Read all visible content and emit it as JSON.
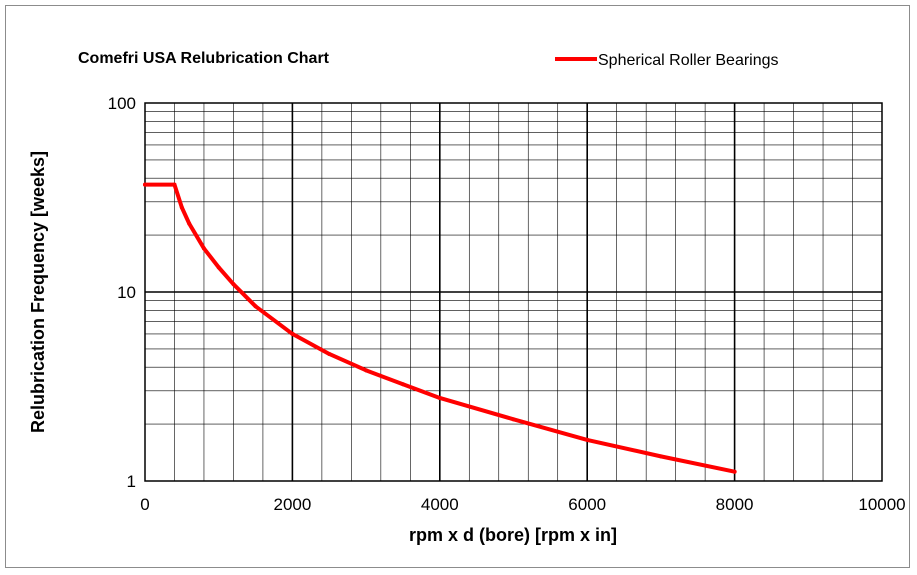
{
  "chart_data": {
    "type": "line",
    "title": "Comefri USA Relubrication Chart",
    "xlabel": "rpm x d (bore) [rpm x in]",
    "ylabel": "Relubrication Frequency [weeks]",
    "x_scale": "linear",
    "y_scale": "log",
    "xlim": [
      0,
      10000
    ],
    "ylim": [
      1,
      100
    ],
    "x_ticks": [
      "0",
      "2000",
      "4000",
      "6000",
      "8000",
      "10000"
    ],
    "y_ticks": [
      "1",
      "10",
      "100"
    ],
    "grid": true,
    "legend_position": "top-right",
    "series": [
      {
        "name": "Spherical Roller Bearings",
        "color": "#ff0000",
        "x": [
          0,
          400,
          500,
          600,
          800,
          1000,
          1200,
          1500,
          2000,
          2500,
          3000,
          3500,
          4000,
          5000,
          6000,
          7000,
          8000
        ],
        "y": [
          37,
          37,
          28,
          23,
          17,
          13.5,
          11,
          8.4,
          6.0,
          4.7,
          3.85,
          3.25,
          2.75,
          2.12,
          1.65,
          1.35,
          1.12
        ]
      }
    ]
  }
}
